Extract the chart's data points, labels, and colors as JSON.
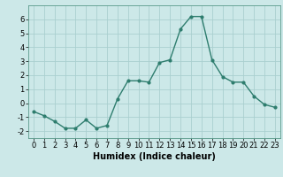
{
  "x": [
    0,
    1,
    2,
    3,
    4,
    5,
    6,
    7,
    8,
    9,
    10,
    11,
    12,
    13,
    14,
    15,
    16,
    17,
    18,
    19,
    20,
    21,
    22,
    23
  ],
  "y": [
    -0.6,
    -0.9,
    -1.3,
    -1.8,
    -1.8,
    -1.2,
    -1.8,
    -1.6,
    0.3,
    1.6,
    1.6,
    1.5,
    2.9,
    3.1,
    5.3,
    6.2,
    6.2,
    3.1,
    1.9,
    1.5,
    1.5,
    0.5,
    -0.1,
    -0.3
  ],
  "line_color": "#2e7d6e",
  "marker": "o",
  "markersize": 2.0,
  "linewidth": 1.0,
  "bg_color": "#cce8e8",
  "grid_color": "#aacfcf",
  "xlabel": "Humidex (Indice chaleur)",
  "xlabel_fontsize": 7,
  "tick_fontsize": 6,
  "ylim": [
    -2.5,
    7.0
  ],
  "xlim": [
    -0.5,
    23.5
  ],
  "yticks": [
    -2,
    -1,
    0,
    1,
    2,
    3,
    4,
    5,
    6
  ],
  "xticks": [
    0,
    1,
    2,
    3,
    4,
    5,
    6,
    7,
    8,
    9,
    10,
    11,
    12,
    13,
    14,
    15,
    16,
    17,
    18,
    19,
    20,
    21,
    22,
    23
  ]
}
